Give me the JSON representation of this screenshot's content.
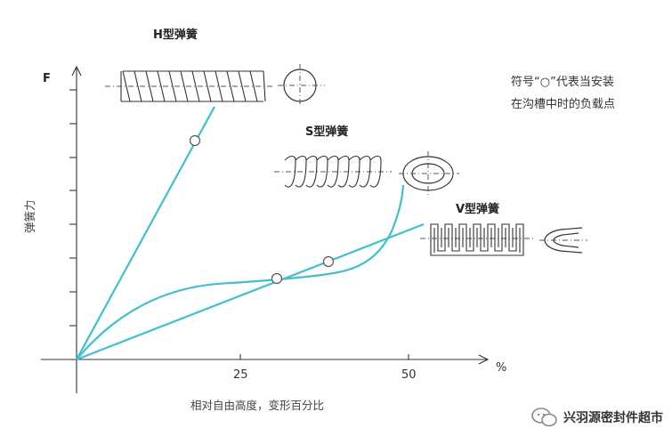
{
  "axes": {
    "y_label": "F",
    "x_unit": "%",
    "y_title": "弹簧力",
    "x_title": "相对自由高度，变形百分比",
    "x_ticks": [
      "25",
      "50"
    ]
  },
  "springs": {
    "h_label": "H型弹簧",
    "s_label": "S型弹簧",
    "v_label": "V型弹簧"
  },
  "note": {
    "line1": "符号“○”代表当安装",
    "line2": "在沟槽中时的负载点"
  },
  "watermark": {
    "text": "兴羽源密封件超市"
  },
  "colors": {
    "curve": "#3fbfcf",
    "axis": "#333333"
  }
}
